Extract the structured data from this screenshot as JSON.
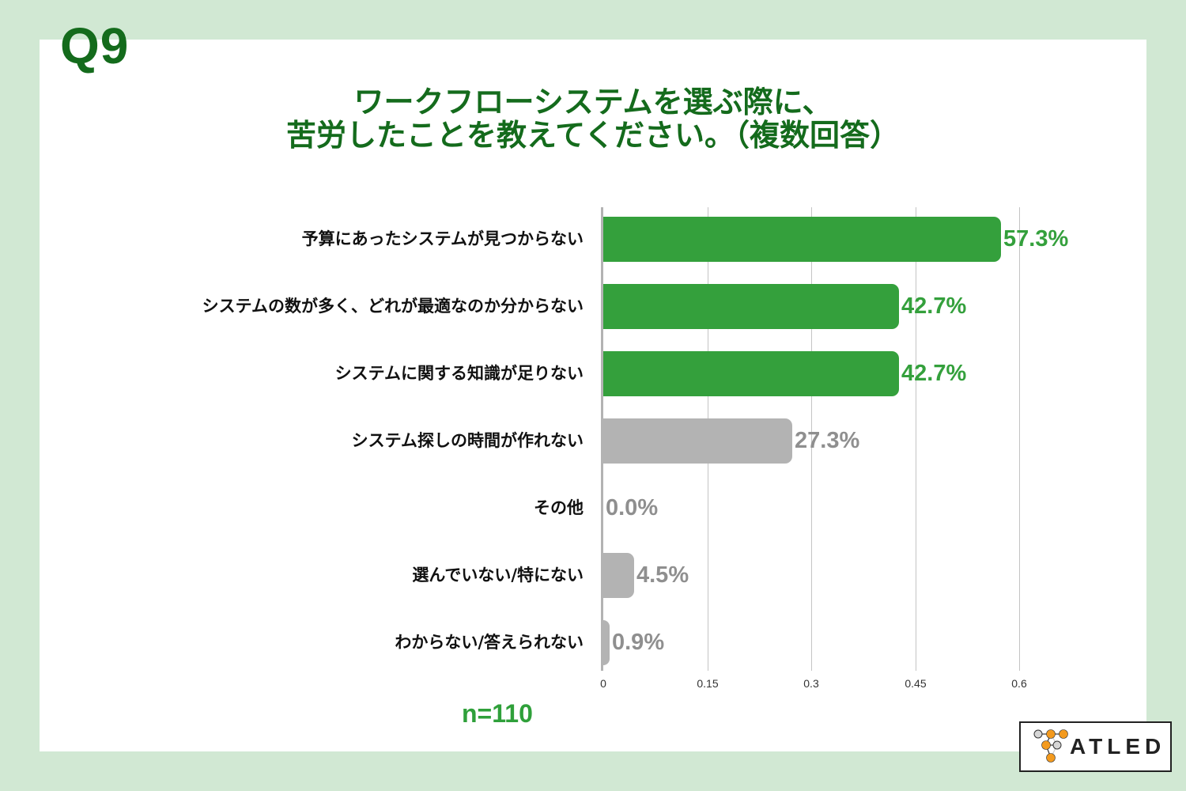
{
  "question": {
    "number": "Q9",
    "title_line1": "ワークフローシステムを選ぶ際に、",
    "title_line2": "苦労したことを教えてください。（複数回答）"
  },
  "colors": {
    "background": "#d1e8d3",
    "panel": "#ffffff",
    "title": "#146b1c",
    "highlight_bar": "#34a03c",
    "highlight_label": "#34a03c",
    "normal_bar": "#b3b3b3",
    "normal_label": "#8f8f8f"
  },
  "sample_size": "n=110",
  "logo": {
    "text": "ATLED",
    "icon": "atled-node-logo-icon"
  },
  "axis": {
    "ticks": [
      "0",
      "0.15",
      "0.3",
      "0.45",
      "0.6"
    ]
  },
  "rows": [
    {
      "label": "予算にあったシステムが見つからない",
      "value_text": "57.3%"
    },
    {
      "label": "システムの数が多く、どれが最適なのか分からない",
      "value_text": "42.7%"
    },
    {
      "label": "システムに関する知識が足りない",
      "value_text": "42.7%"
    },
    {
      "label": "システム探しの時間が作れない",
      "value_text": "27.3%"
    },
    {
      "label": "その他",
      "value_text": "0.0%"
    },
    {
      "label": "選んでいない/特にない",
      "value_text": "4.5%"
    },
    {
      "label": "わからない/答えられない",
      "value_text": "0.9%"
    }
  ],
  "chart_data": {
    "type": "bar",
    "orientation": "horizontal",
    "title": "ワークフローシステムを選ぶ際に、苦労したことを教えてください。（複数回答）",
    "categories": [
      "予算にあったシステムが見つからない",
      "システムの数が多く、どれが最適なのか分からない",
      "システムに関する知識が足りない",
      "システム探しの時間が作れない",
      "その他",
      "選んでいない/特にない",
      "わからない/答えられない"
    ],
    "values": [
      0.573,
      0.427,
      0.427,
      0.273,
      0.0,
      0.045,
      0.009
    ],
    "data_labels": [
      "57.3%",
      "42.7%",
      "42.7%",
      "27.3%",
      "0.0%",
      "4.5%",
      "0.9%"
    ],
    "highlighted": [
      true,
      true,
      true,
      false,
      false,
      false,
      false
    ],
    "xlabel": "",
    "ylabel": "",
    "xlim": [
      0,
      0.7
    ],
    "xticks": [
      0,
      0.15,
      0.3,
      0.45,
      0.6
    ],
    "grid": true,
    "legend": null,
    "annotation": "n=110"
  }
}
